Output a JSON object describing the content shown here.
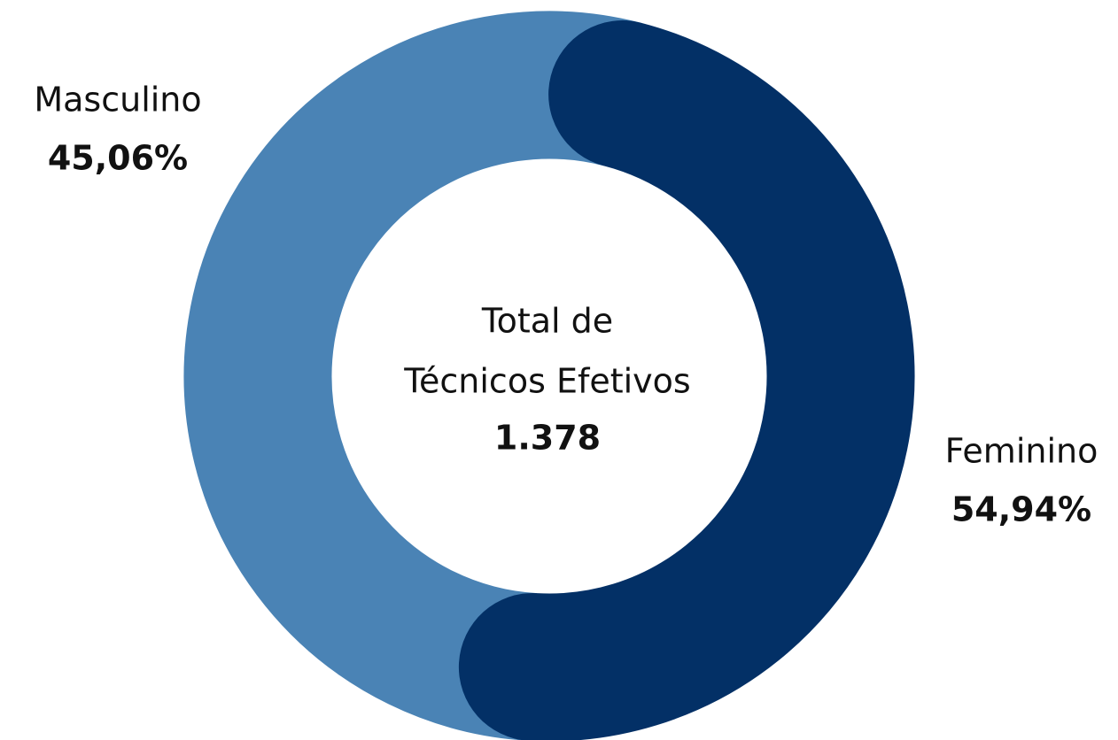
{
  "chart_data": {
    "type": "donut",
    "series": [
      {
        "name": "Feminino",
        "color": "#033066",
        "value": 54.94,
        "value_label": "54,94%"
      },
      {
        "name": "Masculino",
        "color": "#4a83b5",
        "value": 45.06,
        "value_label": "45,06%"
      }
    ],
    "center_text": [
      "Total de",
      "Técnicos Efetivos"
    ],
    "center_value": "1.378"
  }
}
